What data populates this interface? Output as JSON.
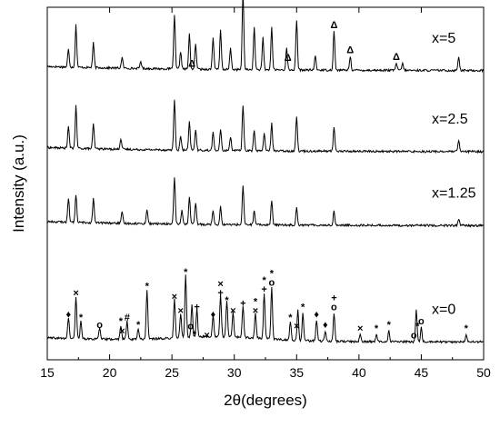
{
  "chart_data": {
    "type": "line",
    "title": "",
    "xlabel": "2θ(degrees)",
    "ylabel": "Intensity (a.u.)",
    "xlim": [
      15,
      50
    ],
    "x_ticks": [
      "15",
      "20",
      "25",
      "30",
      "35",
      "40",
      "45",
      "50"
    ],
    "y_tick_labels": false,
    "grid": false,
    "legend": "none",
    "series": [
      {
        "name": "x=5",
        "baseline_level": 0.82,
        "peaks": [
          [
            16.7,
            0.05
          ],
          [
            17.3,
            0.12
          ],
          [
            18.7,
            0.07
          ],
          [
            21.0,
            0.03
          ],
          [
            22.5,
            0.02
          ],
          [
            25.2,
            0.15
          ],
          [
            25.7,
            0.05
          ],
          [
            26.4,
            0.1
          ],
          [
            26.9,
            0.07
          ],
          [
            28.3,
            0.09
          ],
          [
            28.9,
            0.11
          ],
          [
            29.7,
            0.06
          ],
          [
            30.7,
            0.22
          ],
          [
            31.6,
            0.12
          ],
          [
            32.3,
            0.09
          ],
          [
            33.0,
            0.12
          ],
          [
            34.2,
            0.06
          ],
          [
            35.0,
            0.14
          ],
          [
            36.5,
            0.04
          ],
          [
            38.0,
            0.11
          ],
          [
            39.3,
            0.04
          ],
          [
            43.0,
            0.02
          ],
          [
            43.5,
            0.02
          ],
          [
            48.0,
            0.04
          ]
        ]
      },
      {
        "name": "x=2.5",
        "baseline_level": 0.59,
        "peaks": [
          [
            16.7,
            0.06
          ],
          [
            17.3,
            0.12
          ],
          [
            18.7,
            0.07
          ],
          [
            20.9,
            0.03
          ],
          [
            25.2,
            0.14
          ],
          [
            25.7,
            0.04
          ],
          [
            26.4,
            0.08
          ],
          [
            26.9,
            0.06
          ],
          [
            28.3,
            0.05
          ],
          [
            28.9,
            0.06
          ],
          [
            29.7,
            0.04
          ],
          [
            30.7,
            0.13
          ],
          [
            31.6,
            0.06
          ],
          [
            32.4,
            0.05
          ],
          [
            33.0,
            0.08
          ],
          [
            35.0,
            0.1
          ],
          [
            38.0,
            0.07
          ],
          [
            48.0,
            0.03
          ]
        ]
      },
      {
        "name": "x=1.25",
        "baseline_level": 0.38,
        "peaks": [
          [
            16.7,
            0.07
          ],
          [
            17.3,
            0.08
          ],
          [
            18.7,
            0.07
          ],
          [
            21.0,
            0.03
          ],
          [
            23.0,
            0.04
          ],
          [
            25.2,
            0.13
          ],
          [
            25.8,
            0.04
          ],
          [
            26.4,
            0.08
          ],
          [
            26.9,
            0.06
          ],
          [
            28.3,
            0.04
          ],
          [
            28.9,
            0.05
          ],
          [
            30.7,
            0.11
          ],
          [
            31.6,
            0.04
          ],
          [
            33.0,
            0.07
          ],
          [
            35.0,
            0.05
          ],
          [
            38.0,
            0.04
          ],
          [
            48.0,
            0.02
          ]
        ]
      },
      {
        "name": "x=0",
        "baseline_level": 0.05,
        "peaks": [
          [
            16.7,
            0.06
          ],
          [
            17.3,
            0.12
          ],
          [
            17.7,
            0.05
          ],
          [
            19.2,
            0.03
          ],
          [
            20.9,
            0.04
          ],
          [
            21.4,
            0.05
          ],
          [
            22.3,
            0.03
          ],
          [
            23.0,
            0.14
          ],
          [
            25.2,
            0.11
          ],
          [
            25.7,
            0.07
          ],
          [
            26.1,
            0.18
          ],
          [
            26.6,
            0.09
          ],
          [
            27.0,
            0.08
          ],
          [
            28.3,
            0.06
          ],
          [
            28.9,
            0.12
          ],
          [
            29.4,
            0.1
          ],
          [
            29.9,
            0.07
          ],
          [
            30.7,
            0.09
          ],
          [
            31.7,
            0.07
          ],
          [
            32.4,
            0.13
          ],
          [
            33.0,
            0.15
          ],
          [
            34.5,
            0.05
          ],
          [
            35.1,
            0.09
          ],
          [
            35.5,
            0.08
          ],
          [
            36.6,
            0.06
          ],
          [
            37.3,
            0.03
          ],
          [
            38.0,
            0.08
          ],
          [
            40.1,
            0.02
          ],
          [
            41.4,
            0.02
          ],
          [
            42.4,
            0.03
          ],
          [
            44.6,
            0.09
          ],
          [
            45.0,
            0.04
          ],
          [
            48.6,
            0.02
          ]
        ]
      }
    ],
    "annotations": [
      {
        "symbol": "Δ",
        "x": 26.6,
        "series": "x=5"
      },
      {
        "symbol": "Δ",
        "x": 34.3,
        "series": "x=5"
      },
      {
        "symbol": "Δ",
        "x": 38.0,
        "series": "x=5"
      },
      {
        "symbol": "Δ",
        "x": 39.3,
        "series": "x=5"
      },
      {
        "symbol": "Δ",
        "x": 43.0,
        "series": "x=5"
      },
      {
        "symbol": "♦",
        "x": 16.7,
        "series": "x=0"
      },
      {
        "symbol": "×",
        "x": 17.3,
        "series": "x=0"
      },
      {
        "symbol": "*",
        "x": 17.7,
        "series": "x=0"
      },
      {
        "symbol": "o",
        "x": 19.2,
        "series": "x=0"
      },
      {
        "symbol": "*",
        "x": 20.9,
        "series": "x=0"
      },
      {
        "symbol": "×",
        "x": 21.0,
        "series": "x=0"
      },
      {
        "symbol": "#",
        "x": 21.4,
        "series": "x=0"
      },
      {
        "symbol": "*",
        "x": 22.3,
        "series": "x=0"
      },
      {
        "symbol": "*",
        "x": 23.0,
        "series": "x=0"
      },
      {
        "symbol": "×",
        "x": 25.2,
        "series": "x=0"
      },
      {
        "symbol": "×",
        "x": 25.7,
        "series": "x=0"
      },
      {
        "symbol": "*",
        "x": 26.1,
        "series": "x=0"
      },
      {
        "symbol": "o",
        "x": 26.5,
        "series": "x=0"
      },
      {
        "symbol": "*",
        "x": 26.8,
        "series": "x=0"
      },
      {
        "symbol": "+",
        "x": 27.0,
        "series": "x=0"
      },
      {
        "symbol": "×",
        "x": 27.8,
        "series": "x=0"
      },
      {
        "symbol": "♦",
        "x": 28.3,
        "series": "x=0"
      },
      {
        "symbol": "+",
        "x": 28.9,
        "series": "x=0"
      },
      {
        "symbol": "×",
        "x": 28.9,
        "series": "x=0"
      },
      {
        "symbol": "*",
        "x": 29.4,
        "series": "x=0"
      },
      {
        "symbol": "×",
        "x": 29.9,
        "series": "x=0"
      },
      {
        "symbol": "+",
        "x": 30.7,
        "series": "x=0"
      },
      {
        "symbol": "×",
        "x": 31.7,
        "series": "x=0"
      },
      {
        "symbol": "*",
        "x": 31.7,
        "series": "x=0"
      },
      {
        "symbol": "+",
        "x": 32.4,
        "series": "x=0"
      },
      {
        "symbol": "*",
        "x": 32.4,
        "series": "x=0"
      },
      {
        "symbol": "o",
        "x": 33.0,
        "series": "x=0"
      },
      {
        "symbol": "*",
        "x": 33.0,
        "series": "x=0"
      },
      {
        "symbol": "*",
        "x": 34.5,
        "series": "x=0"
      },
      {
        "symbol": "×",
        "x": 35.0,
        "series": "x=0"
      },
      {
        "symbol": "*",
        "x": 35.5,
        "series": "x=0"
      },
      {
        "symbol": "♦",
        "x": 36.6,
        "series": "x=0"
      },
      {
        "symbol": "♦",
        "x": 37.3,
        "series": "x=0"
      },
      {
        "symbol": "o",
        "x": 38.0,
        "series": "x=0"
      },
      {
        "symbol": "+",
        "x": 38.0,
        "series": "x=0"
      },
      {
        "symbol": "×",
        "x": 40.1,
        "series": "x=0"
      },
      {
        "symbol": "*",
        "x": 41.4,
        "series": "x=0"
      },
      {
        "symbol": "*",
        "x": 42.4,
        "series": "x=0"
      },
      {
        "symbol": "o",
        "x": 44.4,
        "series": "x=0"
      },
      {
        "symbol": "*",
        "x": 44.7,
        "series": "x=0"
      },
      {
        "symbol": "o",
        "x": 45.0,
        "series": "x=0"
      },
      {
        "symbol": "*",
        "x": 48.6,
        "series": "x=0"
      }
    ]
  },
  "colors": {
    "line": "#000000",
    "background": "#ffffff"
  }
}
